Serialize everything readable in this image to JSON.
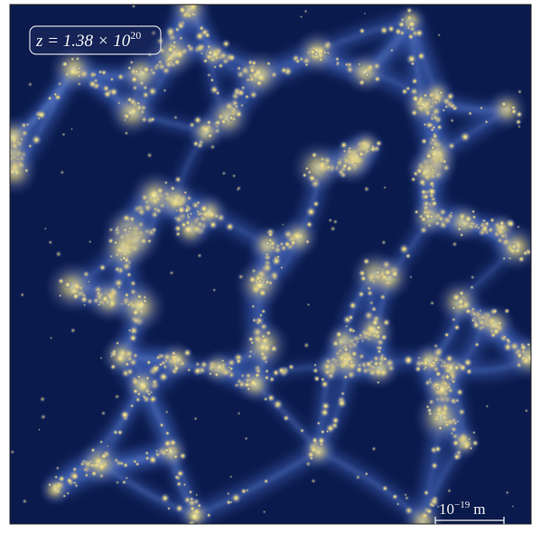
{
  "annotation": {
    "base": "z = 1.38 × 10",
    "exponent": "20"
  },
  "scale_bar": {
    "base": "10",
    "exponent": "−19",
    "unit": "m"
  }
}
